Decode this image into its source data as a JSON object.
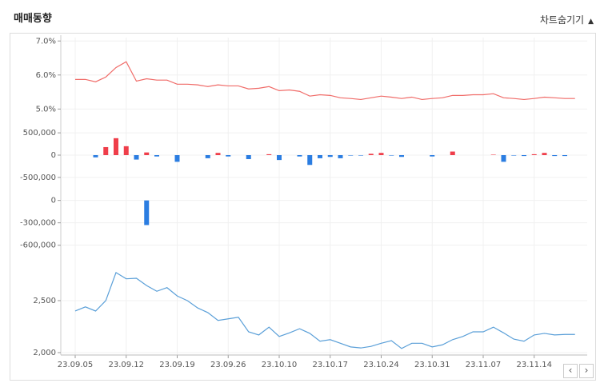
{
  "chart_data": {
    "type": "combo",
    "title": "매매동향",
    "toggle_label": "차트숨기기",
    "categories": [
      "23.09.05",
      null,
      null,
      null,
      null,
      "23.09.12",
      null,
      null,
      null,
      null,
      "23.09.19",
      null,
      null,
      null,
      null,
      "23.09.26",
      null,
      null,
      null,
      null,
      "23.10.10",
      null,
      null,
      null,
      null,
      "23.10.17",
      null,
      null,
      null,
      null,
      "23.10.24",
      null,
      null,
      null,
      null,
      "23.10.31",
      null,
      null,
      null,
      null,
      "23.11.07",
      null,
      null,
      null,
      null,
      "23.11.14",
      null,
      null,
      null,
      null
    ],
    "panels": [
      {
        "type": "line",
        "color": "#f06b68",
        "ylim": [
          4.75,
          7.1
        ],
        "yticks": [
          {
            "value": 7,
            "label": "7.0%"
          },
          {
            "value": 6,
            "label": "6.0%"
          },
          {
            "value": 5,
            "label": "5.0%"
          }
        ],
        "values": [
          5.87,
          5.87,
          5.8,
          5.94,
          6.22,
          6.39,
          5.82,
          5.89,
          5.85,
          5.85,
          5.73,
          5.73,
          5.71,
          5.66,
          5.71,
          5.68,
          5.68,
          5.59,
          5.61,
          5.66,
          5.54,
          5.56,
          5.52,
          5.38,
          5.42,
          5.4,
          5.33,
          5.31,
          5.28,
          5.33,
          5.38,
          5.35,
          5.31,
          5.35,
          5.28,
          5.31,
          5.33,
          5.4,
          5.4,
          5.42,
          5.42,
          5.45,
          5.33,
          5.31,
          5.28,
          5.31,
          5.35,
          5.33,
          5.31,
          5.31
        ]
      },
      {
        "type": "bar",
        "up_color": "#ef3e4a",
        "down_color": "#2b7de1",
        "ylim": [
          -700000,
          700000
        ],
        "yticks": [
          {
            "value": 500000,
            "label": "500,000"
          },
          0,
          {
            "value": -500000,
            "label": "-500,000"
          }
        ],
        "values": [
          0,
          0,
          -50000,
          180000,
          380000,
          200000,
          -100000,
          60000,
          -30000,
          0,
          -150000,
          0,
          0,
          -70000,
          50000,
          -30000,
          0,
          -90000,
          0,
          20000,
          -110000,
          0,
          -30000,
          -220000,
          -70000,
          -40000,
          -70000,
          -10000,
          -10000,
          30000,
          50000,
          -10000,
          -40000,
          0,
          0,
          -30000,
          0,
          80000,
          0,
          0,
          0,
          10000,
          -150000,
          -10000,
          -20000,
          20000,
          50000,
          -20000,
          -20000,
          0
        ]
      },
      {
        "type": "bar",
        "up_color": "#ef3e4a",
        "down_color": "#2b7de1",
        "ylim": [
          -700000,
          50000
        ],
        "yticks": [
          0,
          {
            "value": -300000,
            "label": "-300,000"
          },
          {
            "value": -600000,
            "label": "-600,000"
          }
        ],
        "values": [
          0,
          0,
          0,
          0,
          0,
          0,
          0,
          -330000,
          0,
          0,
          0,
          0,
          0,
          0,
          0,
          0,
          0,
          0,
          0,
          0,
          0,
          0,
          0,
          0,
          0,
          0,
          0,
          0,
          0,
          0,
          0,
          0,
          0,
          0,
          0,
          0,
          0,
          0,
          0,
          0,
          0,
          0,
          0,
          0,
          0,
          0,
          0,
          0,
          0,
          0
        ]
      },
      {
        "type": "line",
        "color": "#5a9fd8",
        "ylim": [
          1977,
          2892
        ],
        "yticks": [
          {
            "value": 2500,
            "label": "2,500"
          },
          {
            "value": 2000,
            "label": "2,000"
          }
        ],
        "values": [
          2400,
          2440,
          2400,
          2500,
          2770,
          2710,
          2715,
          2645,
          2590,
          2625,
          2545,
          2500,
          2430,
          2385,
          2310,
          2325,
          2340,
          2200,
          2170,
          2245,
          2155,
          2190,
          2230,
          2185,
          2110,
          2125,
          2090,
          2055,
          2045,
          2060,
          2090,
          2115,
          2040,
          2090,
          2090,
          2055,
          2075,
          2125,
          2155,
          2200,
          2200,
          2245,
          2190,
          2130,
          2110,
          2170,
          2185,
          2170,
          2175,
          2175
        ]
      }
    ]
  }
}
